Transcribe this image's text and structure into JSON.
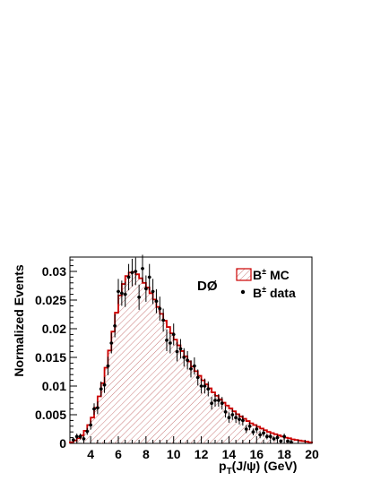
{
  "chart_data": {
    "type": "histogram",
    "experiment_label": "DØ",
    "xlabel": {
      "main": "p",
      "sub": "T",
      "rest": "(J/ψ)  (GeV)"
    },
    "ylabel": "Normalized Events",
    "xlim": [
      2.5,
      20
    ],
    "ylim": [
      0,
      0.0325
    ],
    "x_ticks": [
      4,
      6,
      8,
      10,
      12,
      14,
      16,
      18,
      20
    ],
    "y_ticks": [
      0,
      0.005,
      0.01,
      0.015,
      0.02,
      0.025,
      0.03
    ],
    "y_tick_labels": [
      "0",
      "0.005",
      "0.01",
      "0.015",
      "0.02",
      "0.025",
      "0.03"
    ],
    "grid": false,
    "legend_position": "top-right",
    "colors": {
      "mc_line": "#cc0000",
      "mc_hatch": "#c87878",
      "data_marker": "#000000"
    },
    "series": [
      {
        "label": "B",
        "label_sup": "±",
        "label_rest": " MC",
        "style": "hatched-histogram",
        "bin_width": 0.25,
        "x": [
          2.625,
          2.875,
          3.125,
          3.375,
          3.625,
          3.875,
          4.125,
          4.375,
          4.625,
          4.875,
          5.125,
          5.375,
          5.625,
          5.875,
          6.125,
          6.375,
          6.625,
          6.875,
          7.125,
          7.375,
          7.625,
          7.875,
          8.125,
          8.375,
          8.625,
          8.875,
          9.125,
          9.375,
          9.625,
          9.875,
          10.125,
          10.375,
          10.625,
          10.875,
          11.125,
          11.375,
          11.625,
          11.875,
          12.125,
          12.375,
          12.625,
          12.875,
          13.125,
          13.375,
          13.625,
          13.875,
          14.125,
          14.375,
          14.625,
          14.875,
          15.125,
          15.375,
          15.625,
          15.875,
          16.125,
          16.375,
          16.625,
          16.875,
          17.125,
          17.375,
          17.625,
          17.875,
          18.125,
          18.375,
          18.625,
          18.875,
          19.125,
          19.375,
          19.625,
          19.875
        ],
        "values": [
          0.0002,
          0.0005,
          0.0009,
          0.0014,
          0.0022,
          0.0032,
          0.0045,
          0.0062,
          0.0082,
          0.0105,
          0.0132,
          0.0162,
          0.0195,
          0.0228,
          0.0258,
          0.0278,
          0.0292,
          0.0298,
          0.0299,
          0.0295,
          0.0288,
          0.028,
          0.0272,
          0.0262,
          0.0251,
          0.0238,
          0.0226,
          0.0214,
          0.0203,
          0.0192,
          0.0181,
          0.0171,
          0.0161,
          0.0152,
          0.0143,
          0.0134,
          0.0126,
          0.0118,
          0.011,
          0.0103,
          0.0096,
          0.0089,
          0.0083,
          0.0077,
          0.0071,
          0.0066,
          0.0061,
          0.0056,
          0.0051,
          0.0047,
          0.0043,
          0.0039,
          0.0035,
          0.0032,
          0.0029,
          0.0026,
          0.0023,
          0.002,
          0.0018,
          0.0016,
          0.0014,
          0.0012,
          0.001,
          0.0009,
          0.0007,
          0.0006,
          0.0005,
          0.0004,
          0.0003,
          0.0002
        ]
      },
      {
        "label": "B",
        "label_sup": "±",
        "label_rest": " data",
        "style": "points-with-errors",
        "x": [
          2.75,
          3.0,
          3.25,
          3.5,
          3.75,
          4.0,
          4.25,
          4.5,
          4.75,
          5.0,
          5.25,
          5.5,
          5.75,
          6.0,
          6.25,
          6.5,
          6.75,
          7.0,
          7.25,
          7.5,
          7.75,
          8.0,
          8.25,
          8.5,
          8.75,
          9.0,
          9.25,
          9.5,
          9.75,
          10.0,
          10.25,
          10.5,
          10.75,
          11.0,
          11.25,
          11.5,
          11.75,
          12.0,
          12.25,
          12.5,
          12.75,
          13.0,
          13.25,
          13.5,
          13.75,
          14.0,
          14.25,
          14.5,
          14.75,
          15.0,
          15.25,
          15.5,
          15.75,
          16.0,
          16.25,
          16.5,
          16.75,
          17.0,
          17.25,
          17.5,
          17.75,
          18.0,
          18.25,
          18.5
        ],
        "values": [
          0.0006,
          0.0012,
          0.0012,
          0.0008,
          0.0021,
          0.0032,
          0.006,
          0.0062,
          0.0095,
          0.0102,
          0.0135,
          0.0175,
          0.0205,
          0.0265,
          0.0262,
          0.026,
          0.029,
          0.0298,
          0.03,
          0.0255,
          0.0305,
          0.027,
          0.029,
          0.0265,
          0.0248,
          0.0235,
          0.0215,
          0.018,
          0.0175,
          0.019,
          0.016,
          0.0165,
          0.015,
          0.0145,
          0.013,
          0.0135,
          0.0115,
          0.01,
          0.01,
          0.0095,
          0.007,
          0.0075,
          0.0075,
          0.007,
          0.0055,
          0.0045,
          0.005,
          0.0045,
          0.0042,
          0.004,
          0.0025,
          0.003,
          0.002,
          0.0025,
          0.0015,
          0.0018,
          0.0012,
          0.0012,
          0.0008,
          0.001,
          0.0004,
          0.0012,
          0.0004,
          0.0002
        ],
        "errors": [
          0.0004,
          0.0005,
          0.0005,
          0.0005,
          0.0006,
          0.0008,
          0.001,
          0.0011,
          0.0013,
          0.0014,
          0.0016,
          0.0018,
          0.002,
          0.0022,
          0.0022,
          0.0022,
          0.0023,
          0.0024,
          0.0024,
          0.0022,
          0.0024,
          0.0023,
          0.0023,
          0.0022,
          0.0021,
          0.0021,
          0.002,
          0.0019,
          0.0018,
          0.0019,
          0.0017,
          0.0017,
          0.0016,
          0.0016,
          0.0015,
          0.0015,
          0.0014,
          0.0013,
          0.0013,
          0.0013,
          0.0011,
          0.0011,
          0.0011,
          0.0011,
          0.001,
          0.0009,
          0.0009,
          0.0009,
          0.0009,
          0.0009,
          0.0007,
          0.0007,
          0.0006,
          0.0007,
          0.0006,
          0.0006,
          0.0005,
          0.0005,
          0.0004,
          0.0005,
          0.0003,
          0.0005,
          0.0003,
          0.0003
        ]
      }
    ]
  }
}
